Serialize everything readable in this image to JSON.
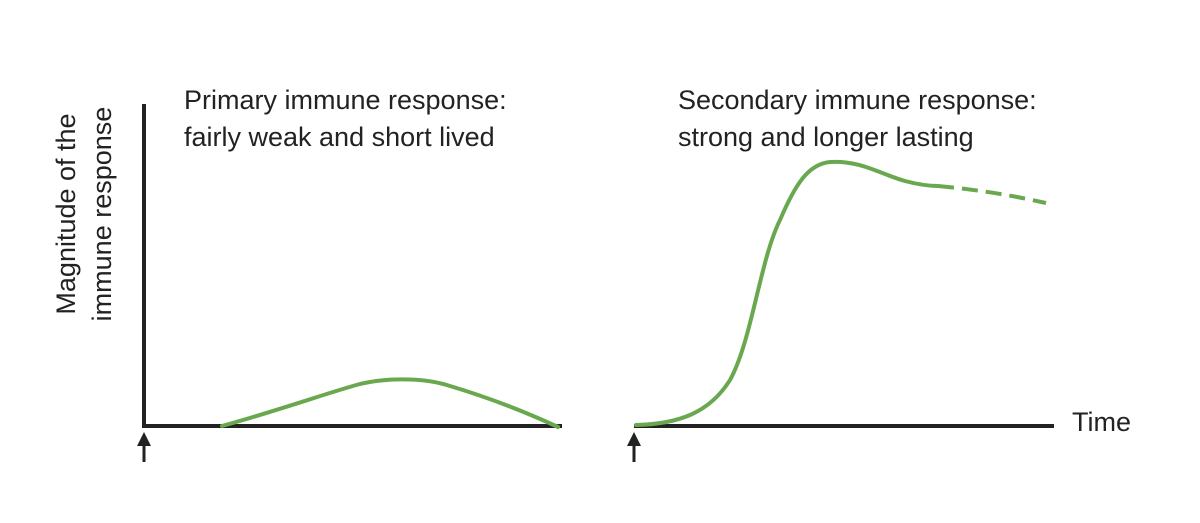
{
  "figure": {
    "primary_title_line1": "Primary immune response:",
    "primary_title_line2": "fairly weak and short lived",
    "secondary_title_line1": "Secondary immune response:",
    "secondary_title_line2": "strong and longer lasting",
    "ylabel_line1": "Magnitude of the",
    "ylabel_line2": "immune response",
    "xlabel": "Time"
  },
  "colors": {
    "curve": "#6aa84f",
    "axis": "#222222",
    "text": "#222222"
  },
  "icons": {
    "primary_exposure": "arrow-up-icon",
    "secondary_exposure": "arrow-up-icon"
  }
}
